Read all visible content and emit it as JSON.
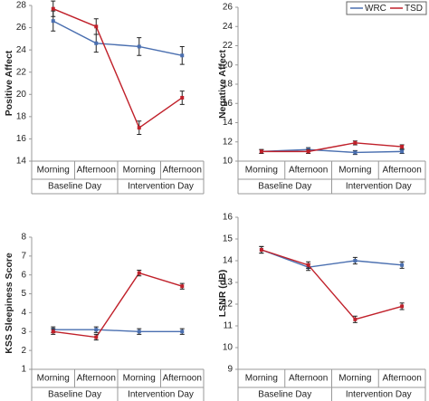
{
  "chart_data": [
    {
      "type": "line",
      "y_label": "Positive Affect",
      "categories": [
        "Morning",
        "Afternoon",
        "Morning",
        "Afternoon"
      ],
      "groups": [
        "Baseline Day",
        "Intervention Day"
      ],
      "ylim": [
        14,
        28
      ],
      "yticks": [
        14,
        16,
        18,
        20,
        22,
        24,
        26,
        28
      ],
      "series": [
        {
          "color": "#4a6fb0",
          "values": [
            26.6,
            24.6,
            24.3,
            23.5
          ],
          "errors": [
            0.9,
            0.8,
            0.8,
            0.8
          ]
        },
        {
          "color": "#c0202a",
          "values": [
            27.7,
            26.1,
            17.0,
            19.7
          ],
          "errors": [
            0.7,
            0.7,
            0.6,
            0.6
          ]
        }
      ]
    },
    {
      "type": "line",
      "y_label": "Negative Affect",
      "categories": [
        "Morning",
        "Afternoon",
        "Morning",
        "Afternoon"
      ],
      "groups": [
        "Baseline Day",
        "Intervention Day"
      ],
      "ylim": [
        10,
        26
      ],
      "yticks": [
        10,
        12,
        14,
        16,
        18,
        20,
        22,
        24,
        26
      ],
      "legend": "upper right",
      "series": [
        {
          "name": "WRC",
          "color": "#4a6fb0",
          "values": [
            11.0,
            11.2,
            10.9,
            11.0
          ],
          "errors": [
            0.2,
            0.2,
            0.2,
            0.2
          ]
        },
        {
          "name": "TSD",
          "color": "#c0202a",
          "values": [
            11.0,
            11.0,
            11.9,
            11.5
          ],
          "errors": [
            0.2,
            0.2,
            0.2,
            0.2
          ]
        }
      ]
    },
    {
      "type": "line",
      "y_label": "KSS Sleepiness Score",
      "categories": [
        "Morning",
        "Afternoon",
        "Morning",
        "Afternoon"
      ],
      "groups": [
        "Baseline Day",
        "Intervention Day"
      ],
      "ylim": [
        1,
        8
      ],
      "yticks": [
        1,
        2,
        3,
        4,
        5,
        6,
        7,
        8
      ],
      "series": [
        {
          "color": "#4a6fb0",
          "values": [
            3.1,
            3.1,
            3.0,
            3.0
          ],
          "errors": [
            0.15,
            0.15,
            0.15,
            0.15
          ]
        },
        {
          "color": "#c0202a",
          "values": [
            3.0,
            2.7,
            6.1,
            5.4
          ],
          "errors": [
            0.15,
            0.15,
            0.15,
            0.15
          ]
        }
      ]
    },
    {
      "type": "line",
      "y_label": "LSNR (dB)",
      "categories": [
        "Morning",
        "Afternoon",
        "Morning",
        "Afternoon"
      ],
      "groups": [
        "Baseline Day",
        "Intervention Day"
      ],
      "ylim": [
        9,
        16
      ],
      "yticks": [
        9,
        10,
        11,
        12,
        13,
        14,
        15,
        16
      ],
      "series": [
        {
          "color": "#4a6fb0",
          "values": [
            14.5,
            13.7,
            14.0,
            13.8
          ],
          "errors": [
            0.15,
            0.15,
            0.15,
            0.15
          ]
        },
        {
          "color": "#c0202a",
          "values": [
            14.5,
            13.8,
            11.3,
            11.9
          ],
          "errors": [
            0.15,
            0.15,
            0.15,
            0.15
          ]
        }
      ]
    }
  ]
}
